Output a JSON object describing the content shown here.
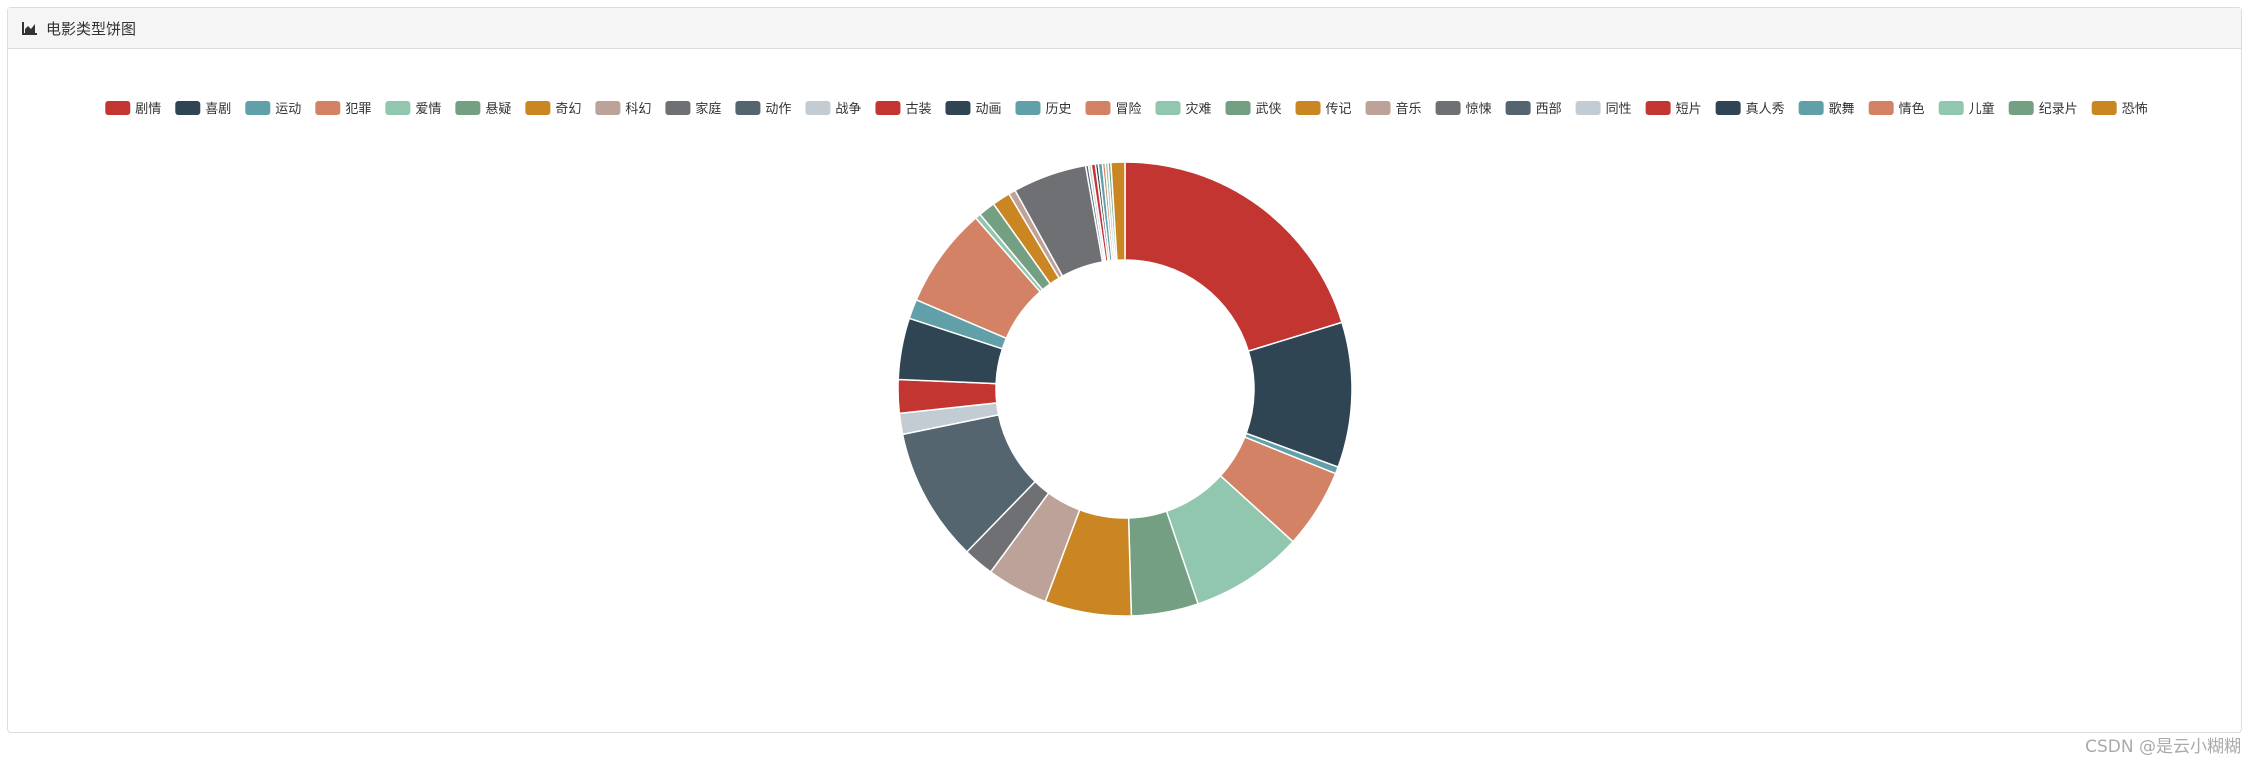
{
  "chart_data": {
    "type": "pie",
    "title": "电影类型饼图",
    "categories": [
      "剧情",
      "喜剧",
      "运动",
      "犯罪",
      "爱情",
      "悬疑",
      "奇幻",
      "科幻",
      "家庭",
      "动作",
      "战争",
      "古装",
      "动画",
      "历史",
      "冒险",
      "灾难",
      "武侠",
      "传记",
      "音乐",
      "惊悚",
      "西部",
      "同性",
      "短片",
      "真人秀",
      "歌舞",
      "情色",
      "儿童",
      "纪录片",
      "恐怖"
    ],
    "values": [
      20.4,
      10.4,
      0.5,
      5.7,
      8.1,
      4.8,
      6.2,
      4.4,
      2.2,
      9.6,
      1.5,
      2.4,
      4.4,
      1.4,
      7.2,
      0.4,
      1.2,
      1.3,
      0.5,
      5.3,
      0.2,
      0.2,
      0.3,
      0.2,
      0.3,
      0.2,
      0.2,
      0.2,
      1.0
    ],
    "colors": [
      "#c23531",
      "#2f4554",
      "#61a0a8",
      "#d48265",
      "#91c7ae",
      "#749f83",
      "#ca8622",
      "#bda29a",
      "#6e7074",
      "#546570",
      "#c4ccd3",
      "#c23531",
      "#2f4554",
      "#61a0a8",
      "#d48265",
      "#91c7ae",
      "#749f83",
      "#ca8622",
      "#bda29a",
      "#6e7074",
      "#546570",
      "#c4ccd3",
      "#c23531",
      "#2f4554",
      "#61a0a8",
      "#d48265",
      "#91c7ae",
      "#749f83",
      "#ca8622"
    ],
    "legend": "top"
  },
  "watermark": "CSDN @是云小糊糊"
}
